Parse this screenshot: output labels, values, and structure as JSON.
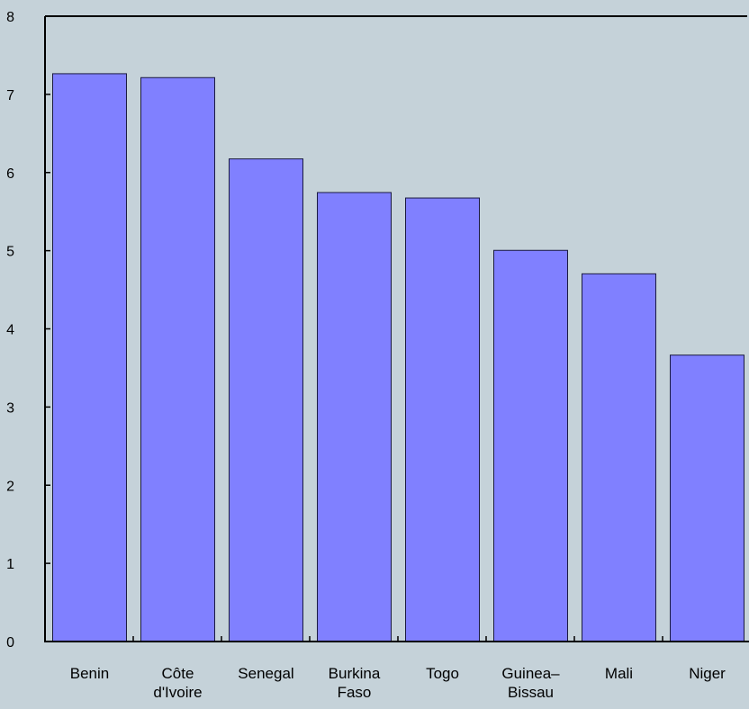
{
  "chart_data": {
    "type": "bar",
    "title": "",
    "xlabel": "",
    "ylabel": "",
    "categories": [
      [
        "Benin"
      ],
      [
        "Côte",
        "d'Ivoire"
      ],
      [
        "Senegal"
      ],
      [
        "Burkina",
        "Faso"
      ],
      [
        "Togo"
      ],
      [
        "Guinea–",
        "Bissau"
      ],
      [
        "Mali"
      ],
      [
        "Niger"
      ]
    ],
    "values": [
      7.27,
      7.22,
      6.18,
      5.75,
      5.68,
      5.01,
      4.71,
      3.67
    ],
    "ylim": [
      0,
      8
    ],
    "yticks": [
      "0",
      "1",
      "2",
      "3",
      "4",
      "5",
      "6",
      "7",
      "8"
    ],
    "grid": false,
    "legend": "none",
    "colors": {
      "background": "#c5d2d9",
      "bar_fill": "#8080ff",
      "bar_stroke": "#1a1a40",
      "axis": "#000000"
    }
  }
}
